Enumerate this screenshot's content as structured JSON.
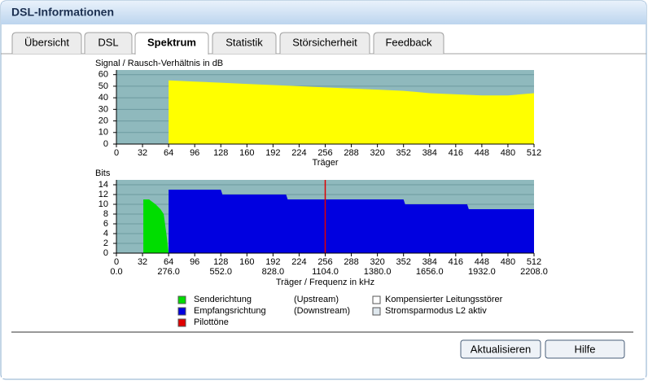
{
  "window": {
    "title": "DSL-Informationen"
  },
  "tabs": [
    "Übersicht",
    "DSL",
    "Spektrum",
    "Statistik",
    "Störsicherheit",
    "Feedback"
  ],
  "active_tab": 2,
  "chart_data": [
    {
      "type": "area",
      "title": "Signal / Rausch-Verhältnis in dB",
      "x_label": "Träger",
      "xlim": [
        0,
        512
      ],
      "ylim": [
        0,
        64
      ],
      "xticks": [
        0,
        32,
        64,
        96,
        128,
        160,
        192,
        224,
        256,
        288,
        320,
        352,
        384,
        416,
        448,
        480,
        512
      ],
      "yticks": [
        0,
        10,
        20,
        30,
        40,
        50,
        60
      ],
      "grid": true,
      "series": [
        {
          "color": "#ffff00",
          "x": [
            64,
            96,
            128,
            160,
            192,
            224,
            256,
            288,
            320,
            352,
            384,
            416,
            448,
            480,
            512
          ],
          "values": [
            55,
            54,
            53,
            52,
            51,
            50,
            49,
            48,
            47,
            46,
            44,
            43,
            42,
            42,
            44
          ]
        }
      ]
    },
    {
      "type": "area",
      "title": "Bits",
      "x_label": "Träger / Frequenz in kHz",
      "xlim": [
        0,
        512
      ],
      "ylim": [
        0,
        15
      ],
      "xticks": [
        0,
        32,
        64,
        96,
        128,
        160,
        192,
        224,
        256,
        288,
        320,
        352,
        384,
        416,
        448,
        480,
        512
      ],
      "yticks": [
        0,
        2,
        4,
        6,
        8,
        10,
        12,
        14
      ],
      "grid": true,
      "x2lim": [
        0,
        2208
      ],
      "x2ticks": [
        {
          "value": 0,
          "label": "0.0"
        },
        {
          "value": 276,
          "label": "276.0"
        },
        {
          "value": 552,
          "label": "552.0"
        },
        {
          "value": 828,
          "label": "828.0"
        },
        {
          "value": 1104,
          "label": "1104.0"
        },
        {
          "value": 1380,
          "label": "1380.0"
        },
        {
          "value": 1656,
          "label": "1656.0"
        },
        {
          "value": 1932,
          "label": "1932.0"
        },
        {
          "value": 2208,
          "label": "2208.0"
        }
      ],
      "series": [
        {
          "name": "Senderichtung",
          "direction": "(Upstream)",
          "color": "#00dd00",
          "x": [
            33,
            40,
            48,
            54,
            58,
            62,
            64
          ],
          "values": [
            11,
            11,
            10,
            9,
            8,
            3,
            0
          ]
        },
        {
          "name": "Empfangsrichtung",
          "direction": "(Downstream)",
          "color": "#0000e0",
          "x": [
            64,
            70,
            128,
            130,
            208,
            210,
            352,
            354,
            430,
            432,
            512
          ],
          "values": [
            13,
            13,
            13,
            12,
            12,
            11,
            11,
            10,
            10,
            9,
            9
          ]
        }
      ],
      "pilot_tones": {
        "name": "Pilottöne",
        "color": "#e00000",
        "x": [
          256
        ]
      }
    }
  ],
  "legend_extra": [
    {
      "label": "Kompensierter Leitungsstörer",
      "color": "#ffffff"
    },
    {
      "label": "Stromsparmodus L2 aktiv",
      "color": "#dfe8ee"
    }
  ],
  "buttons": [
    "Aktualisieren",
    "Hilfe"
  ]
}
